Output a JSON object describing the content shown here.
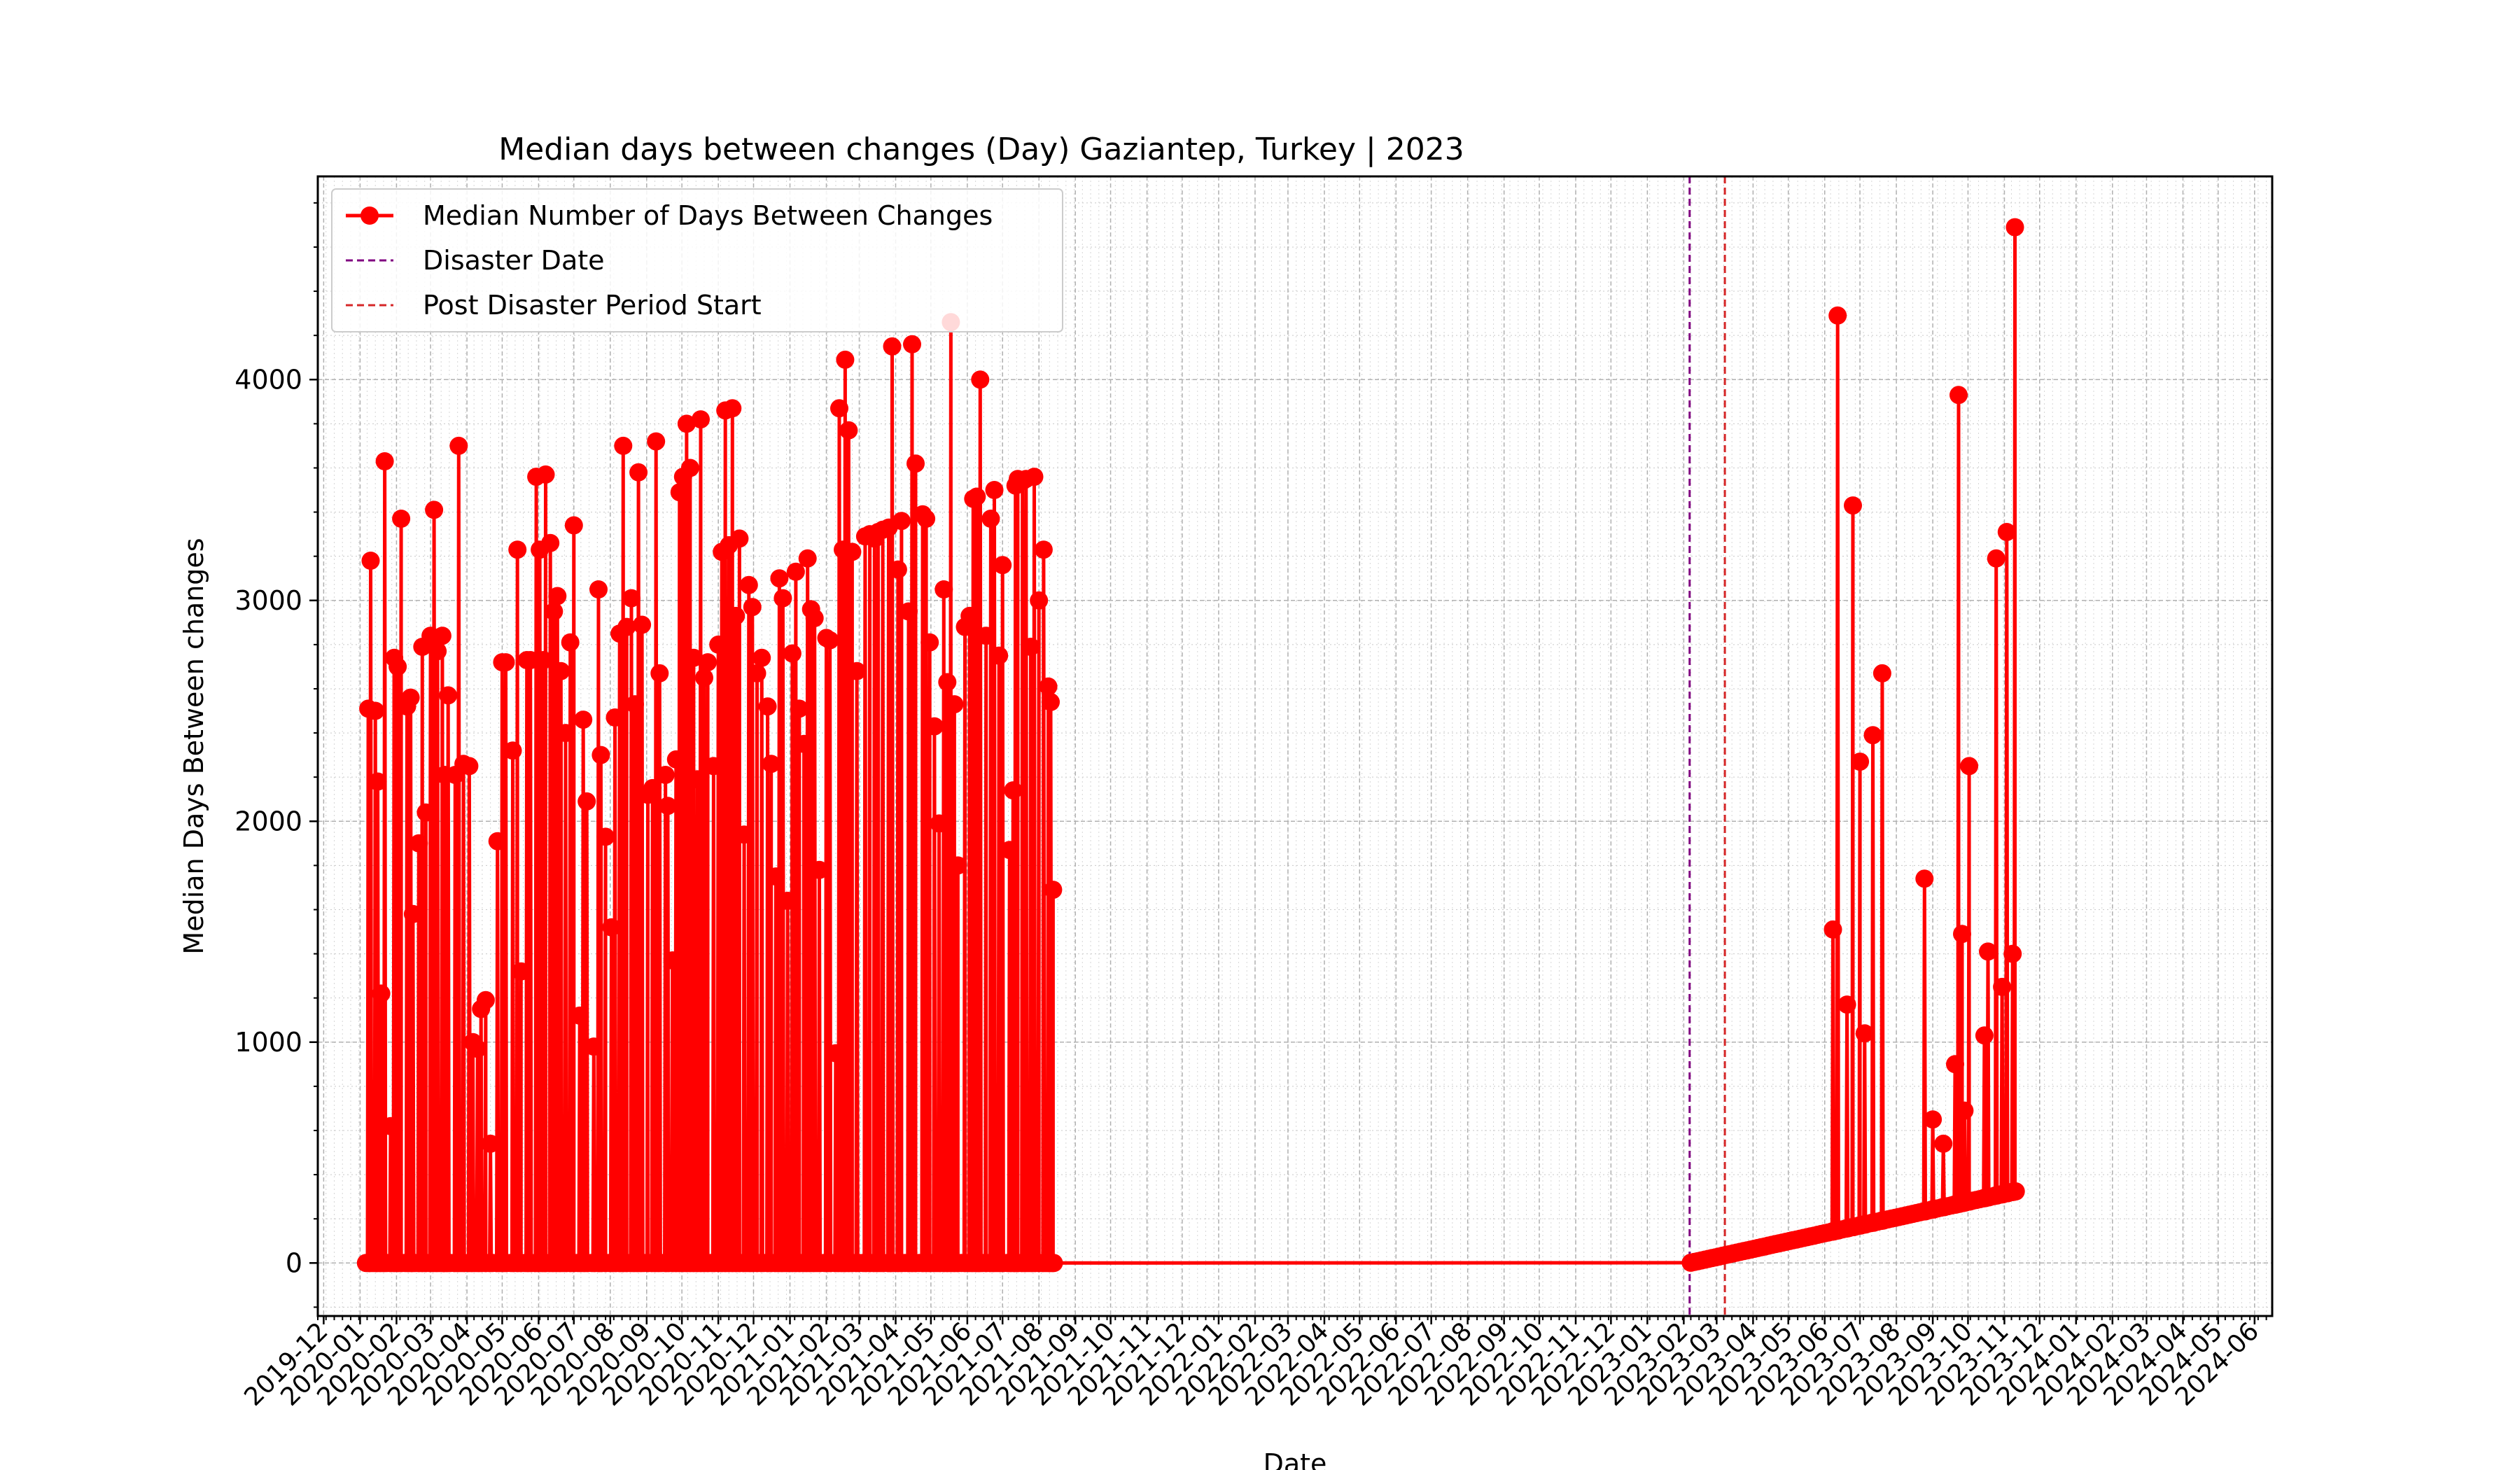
{
  "chart_data": {
    "type": "line",
    "title": "Median days between changes (Day) Gaziantep, Turkey | 2023",
    "xlabel": "Date",
    "ylabel": "Median Days Between changes",
    "x_range": [
      "2019-11-26",
      "2024-06-16"
    ],
    "ylim": [
      -240,
      4920
    ],
    "grid": true,
    "legend_position": "top-left",
    "x_tick_labels": [
      "2019-12",
      "2020-01",
      "2020-02",
      "2020-03",
      "2020-04",
      "2020-05",
      "2020-06",
      "2020-07",
      "2020-08",
      "2020-09",
      "2020-10",
      "2020-11",
      "2020-12",
      "2021-01",
      "2021-02",
      "2021-03",
      "2021-04",
      "2021-05",
      "2021-06",
      "2021-07",
      "2021-08",
      "2021-09",
      "2021-10",
      "2021-11",
      "2021-12",
      "2022-01",
      "2022-02",
      "2022-03",
      "2022-04",
      "2022-05",
      "2022-06",
      "2022-07",
      "2022-08",
      "2022-09",
      "2022-10",
      "2022-11",
      "2022-12",
      "2023-01",
      "2023-02",
      "2023-03",
      "2023-04",
      "2023-05",
      "2023-06",
      "2023-07",
      "2023-08",
      "2023-09",
      "2023-10",
      "2023-11",
      "2023-12",
      "2024-01",
      "2024-02",
      "2024-03",
      "2024-04",
      "2024-05",
      "2024-06"
    ],
    "y_ticks": [
      0,
      1000,
      2000,
      3000,
      4000
    ],
    "y_tick_labels": [
      "0",
      "1000",
      "2000",
      "3000",
      "4000"
    ],
    "colors": {
      "series": "#ff0000",
      "disaster": "#800080",
      "post": "#d62728"
    },
    "series": [
      {
        "name": "Median Number of Days Between Changes",
        "style": "line-with-circle-markers",
        "peaks": [
          [
            "2020-01-08",
            2510
          ],
          [
            "2020-01-10",
            3180
          ],
          [
            "2020-01-14",
            2500
          ],
          [
            "2020-01-16",
            2180
          ],
          [
            "2020-01-19",
            1220
          ],
          [
            "2020-01-22",
            3630
          ],
          [
            "2020-01-27",
            620
          ],
          [
            "2020-01-30",
            2740
          ],
          [
            "2020-02-02",
            2700
          ],
          [
            "2020-02-05",
            3370
          ],
          [
            "2020-02-10",
            2520
          ],
          [
            "2020-02-13",
            2560
          ],
          [
            "2020-02-15",
            1580
          ],
          [
            "2020-02-20",
            1900
          ],
          [
            "2020-02-23",
            2790
          ],
          [
            "2020-02-26",
            2040
          ],
          [
            "2020-03-01",
            2840
          ],
          [
            "2020-03-04",
            3410
          ],
          [
            "2020-03-07",
            2770
          ],
          [
            "2020-03-11",
            2840
          ],
          [
            "2020-03-13",
            2210
          ],
          [
            "2020-03-16",
            2570
          ],
          [
            "2020-03-22",
            2210
          ],
          [
            "2020-03-25",
            3700
          ],
          [
            "2020-03-29",
            2260
          ],
          [
            "2020-04-03",
            2250
          ],
          [
            "2020-04-06",
            1000
          ],
          [
            "2020-04-10",
            970
          ],
          [
            "2020-04-13",
            1150
          ],
          [
            "2020-04-17",
            1190
          ],
          [
            "2020-04-21",
            540
          ],
          [
            "2020-04-27",
            1910
          ],
          [
            "2020-05-01",
            2720
          ],
          [
            "2020-05-04",
            2720
          ],
          [
            "2020-05-10",
            2320
          ],
          [
            "2020-05-14",
            3230
          ],
          [
            "2020-05-17",
            1320
          ],
          [
            "2020-05-22",
            2730
          ],
          [
            "2020-05-25",
            2730
          ],
          [
            "2020-05-30",
            3560
          ],
          [
            "2020-06-02",
            3230
          ],
          [
            "2020-06-05",
            2730
          ],
          [
            "2020-06-07",
            3570
          ],
          [
            "2020-06-11",
            3260
          ],
          [
            "2020-06-14",
            2950
          ],
          [
            "2020-06-17",
            3020
          ],
          [
            "2020-06-20",
            2680
          ],
          [
            "2020-06-24",
            2400
          ],
          [
            "2020-06-28",
            2810
          ],
          [
            "2020-07-01",
            3340
          ],
          [
            "2020-07-06",
            1120
          ],
          [
            "2020-07-09",
            2460
          ],
          [
            "2020-07-12",
            2090
          ],
          [
            "2020-07-18",
            980
          ],
          [
            "2020-07-22",
            3050
          ],
          [
            "2020-07-24",
            2300
          ],
          [
            "2020-07-28",
            1930
          ],
          [
            "2020-08-02",
            1520
          ],
          [
            "2020-08-05",
            2470
          ],
          [
            "2020-08-09",
            2850
          ],
          [
            "2020-08-12",
            3700
          ],
          [
            "2020-08-15",
            2880
          ],
          [
            "2020-08-19",
            3010
          ],
          [
            "2020-08-22",
            2530
          ],
          [
            "2020-08-25",
            3580
          ],
          [
            "2020-08-28",
            2890
          ],
          [
            "2020-09-02",
            2120
          ],
          [
            "2020-09-06",
            2150
          ],
          [
            "2020-09-09",
            3720
          ],
          [
            "2020-09-12",
            2670
          ],
          [
            "2020-09-17",
            2210
          ],
          [
            "2020-09-19",
            2070
          ],
          [
            "2020-09-23",
            1370
          ],
          [
            "2020-09-26",
            2280
          ],
          [
            "2020-09-29",
            3490
          ],
          [
            "2020-10-02",
            3560
          ],
          [
            "2020-10-05",
            3800
          ],
          [
            "2020-10-08",
            3600
          ],
          [
            "2020-10-11",
            2740
          ],
          [
            "2020-10-14",
            2190
          ],
          [
            "2020-10-17",
            3820
          ],
          [
            "2020-10-20",
            2650
          ],
          [
            "2020-10-23",
            2720
          ],
          [
            "2020-10-28",
            2250
          ],
          [
            "2020-11-01",
            2800
          ],
          [
            "2020-11-04",
            3220
          ],
          [
            "2020-11-07",
            3860
          ],
          [
            "2020-11-10",
            3250
          ],
          [
            "2020-11-13",
            3870
          ],
          [
            "2020-11-16",
            2930
          ],
          [
            "2020-11-19",
            3280
          ],
          [
            "2020-11-23",
            1940
          ],
          [
            "2020-11-27",
            3070
          ],
          [
            "2020-11-30",
            2970
          ],
          [
            "2020-12-04",
            2670
          ],
          [
            "2020-12-08",
            2740
          ],
          [
            "2020-12-13",
            2520
          ],
          [
            "2020-12-16",
            2260
          ],
          [
            "2020-12-20",
            1750
          ],
          [
            "2020-12-23",
            3100
          ],
          [
            "2020-12-26",
            3010
          ],
          [
            "2020-12-30",
            1640
          ],
          [
            "2021-01-03",
            2760
          ],
          [
            "2021-01-06",
            3130
          ],
          [
            "2021-01-09",
            2510
          ],
          [
            "2021-01-13",
            2350
          ],
          [
            "2021-01-16",
            3190
          ],
          [
            "2021-01-19",
            2960
          ],
          [
            "2021-01-22",
            2920
          ],
          [
            "2021-01-26",
            1780
          ],
          [
            "2021-02-01",
            2830
          ],
          [
            "2021-02-04",
            2820
          ],
          [
            "2021-02-09",
            950
          ],
          [
            "2021-02-12",
            3870
          ],
          [
            "2021-02-15",
            3230
          ],
          [
            "2021-02-17",
            4090
          ],
          [
            "2021-02-20",
            3770
          ],
          [
            "2021-02-23",
            3220
          ],
          [
            "2021-02-27",
            2680
          ],
          [
            "2021-03-06",
            3290
          ],
          [
            "2021-03-10",
            3300
          ],
          [
            "2021-03-14",
            3280
          ],
          [
            "2021-03-17",
            3310
          ],
          [
            "2021-03-21",
            3320
          ],
          [
            "2021-03-26",
            3330
          ],
          [
            "2021-03-29",
            4150
          ],
          [
            "2021-04-03",
            3140
          ],
          [
            "2021-04-06",
            3360
          ],
          [
            "2021-04-12",
            2950
          ],
          [
            "2021-04-15",
            4160
          ],
          [
            "2021-04-18",
            3620
          ],
          [
            "2021-04-24",
            3390
          ],
          [
            "2021-04-27",
            3370
          ],
          [
            "2021-04-30",
            2810
          ],
          [
            "2021-05-04",
            2430
          ],
          [
            "2021-05-08",
            1990
          ],
          [
            "2021-05-12",
            3050
          ],
          [
            "2021-05-15",
            2630
          ],
          [
            "2021-05-18",
            4260
          ],
          [
            "2021-05-21",
            2530
          ],
          [
            "2021-05-24",
            1800
          ],
          [
            "2021-05-30",
            2880
          ],
          [
            "2021-06-03",
            2930
          ],
          [
            "2021-06-06",
            3460
          ],
          [
            "2021-06-09",
            3470
          ],
          [
            "2021-06-12",
            4000
          ],
          [
            "2021-06-17",
            2840
          ],
          [
            "2021-06-21",
            3370
          ],
          [
            "2021-06-24",
            3500
          ],
          [
            "2021-06-28",
            2750
          ],
          [
            "2021-07-01",
            3160
          ],
          [
            "2021-07-07",
            1870
          ],
          [
            "2021-07-10",
            2140
          ],
          [
            "2021-07-12",
            3520
          ],
          [
            "2021-07-14",
            3550
          ],
          [
            "2021-07-18",
            3540
          ],
          [
            "2021-07-21",
            3550
          ],
          [
            "2021-07-25",
            2790
          ],
          [
            "2021-07-28",
            3560
          ],
          [
            "2021-08-01",
            3000
          ],
          [
            "2021-08-05",
            3230
          ],
          [
            "2021-08-09",
            2610
          ],
          [
            "2021-08-11",
            2540
          ],
          [
            "2021-08-13",
            1690
          ],
          [
            "2023-06-12",
            4290
          ],
          [
            "2023-06-08",
            1510
          ],
          [
            "2023-06-20",
            1170
          ],
          [
            "2023-06-25",
            3430
          ],
          [
            "2023-07-01",
            2270
          ],
          [
            "2023-07-05",
            1040
          ],
          [
            "2023-07-12",
            2390
          ],
          [
            "2023-07-20",
            2670
          ],
          [
            "2023-08-25",
            1740
          ],
          [
            "2023-09-01",
            650
          ],
          [
            "2023-09-10",
            540
          ],
          [
            "2023-09-20",
            900
          ],
          [
            "2023-09-23",
            3930
          ],
          [
            "2023-09-26",
            1490
          ],
          [
            "2023-09-28",
            690
          ],
          [
            "2023-10-02",
            2250
          ],
          [
            "2023-10-15",
            1030
          ],
          [
            "2023-10-18",
            1410
          ],
          [
            "2023-10-25",
            3190
          ],
          [
            "2023-10-30",
            1250
          ],
          [
            "2023-11-03",
            3310
          ],
          [
            "2023-11-08",
            1400
          ],
          [
            "2023-11-10",
            4690
          ]
        ]
      }
    ],
    "reference_lines": [
      {
        "label": "Disaster Date",
        "x": "2023-02-06",
        "style": "dashed"
      },
      {
        "label": "Post Disaster Period Start",
        "x": "2023-03-08",
        "style": "dashed"
      }
    ],
    "legend": [
      "Median Number of Days Between Changes",
      "Disaster Date",
      "Post Disaster Period Start"
    ]
  }
}
